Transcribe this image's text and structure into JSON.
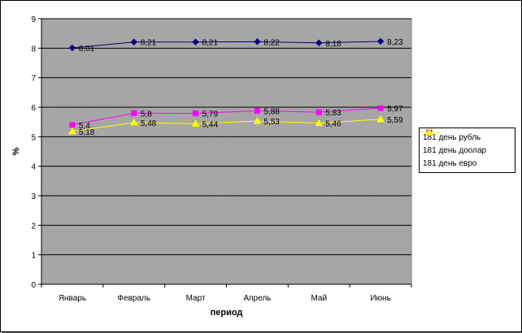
{
  "chart_data": {
    "type": "line",
    "title": "",
    "xlabel": "период",
    "ylabel": "%",
    "ylim": [
      0,
      9
    ],
    "yticks": [
      "0",
      "1",
      "2",
      "3",
      "4",
      "5",
      "6",
      "7",
      "8",
      "9"
    ],
    "categories": [
      "Январь",
      "Февраль",
      "Март",
      "Апрель",
      "Май",
      "Июнь"
    ],
    "grid": true,
    "legend_position": "right",
    "series": [
      {
        "name": "181 день рубль",
        "values": [
          8.01,
          8.21,
          8.21,
          8.22,
          8.18,
          8.23
        ],
        "labels": [
          "8,01",
          "8,21",
          "8,21",
          "8,22",
          "8,18",
          "8,23"
        ],
        "color": "#000080",
        "marker": "diamond"
      },
      {
        "name": "181 день доолар",
        "values": [
          5.4,
          5.8,
          5.79,
          5.88,
          5.83,
          5.97
        ],
        "labels": [
          "5,4",
          "5,8",
          "5,79",
          "5,88",
          "5,83",
          "5,97"
        ],
        "color": "#ff00ff",
        "marker": "square"
      },
      {
        "name": "181 день евро",
        "values": [
          5.18,
          5.48,
          5.44,
          5.53,
          5.46,
          5.59
        ],
        "labels": [
          "5,18",
          "5,48",
          "5,44",
          "5,53",
          "5,46",
          "5,59"
        ],
        "color": "#ffff00",
        "marker": "triangle"
      }
    ]
  }
}
